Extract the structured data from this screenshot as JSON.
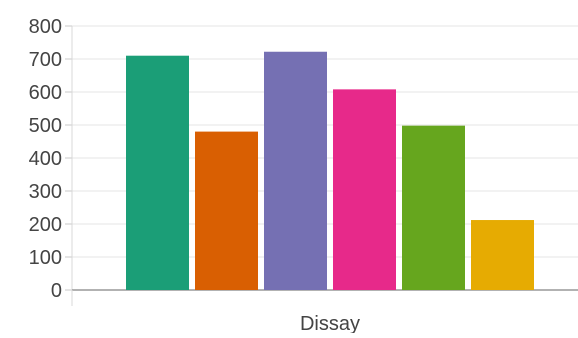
{
  "chart_data": {
    "type": "bar",
    "title": "",
    "xlabel": "",
    "ylabel": "",
    "categories": [
      "Dissay"
    ],
    "ylim": [
      0,
      800
    ],
    "yticks": [
      0,
      100,
      200,
      300,
      400,
      500,
      600,
      700,
      800
    ],
    "grid": true,
    "legend": "none",
    "series": [
      {
        "values": [
          710
        ],
        "color": "#1b9e77"
      },
      {
        "values": [
          480
        ],
        "color": "#d95f02"
      },
      {
        "values": [
          722
        ],
        "color": "#7570b3"
      },
      {
        "values": [
          608
        ],
        "color": "#e7298a"
      },
      {
        "values": [
          498
        ],
        "color": "#66a61e"
      },
      {
        "values": [
          212
        ],
        "color": "#e6ab02"
      }
    ]
  }
}
